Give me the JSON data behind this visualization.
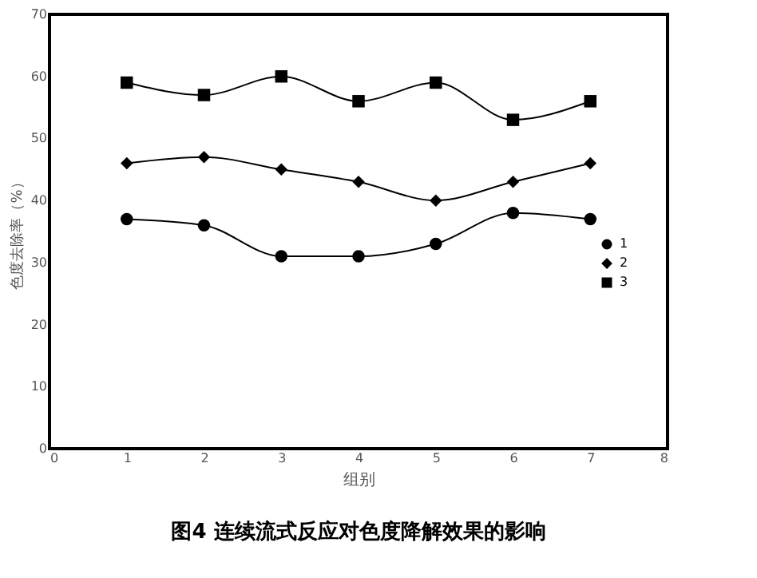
{
  "chart_data": {
    "type": "line",
    "title": "图4  连续流式反应对色度降解效果的影响",
    "xlabel": "组别",
    "ylabel": "色度去除率（%）",
    "x": [
      1,
      2,
      3,
      4,
      5,
      6,
      7
    ],
    "series": [
      {
        "name": "1",
        "color": "#000000",
        "marker": "circle",
        "values": [
          37,
          36,
          31,
          31,
          33,
          38,
          37
        ]
      },
      {
        "name": "2",
        "color": "#000000",
        "marker": "diamond",
        "values": [
          46,
          47,
          45,
          43,
          40,
          43,
          46
        ]
      },
      {
        "name": "3",
        "color": "#000000",
        "marker": "square",
        "values": [
          59,
          57,
          60,
          56,
          59,
          53,
          56
        ]
      }
    ],
    "xlim": [
      0,
      8
    ],
    "xticks": [
      0,
      1,
      2,
      3,
      4,
      5,
      6,
      7,
      8
    ],
    "ylim": [
      0,
      70
    ],
    "yticks": [
      0,
      10,
      20,
      30,
      40,
      50,
      60,
      70
    ],
    "grid": false,
    "legend": "right",
    "line_style": "solid"
  }
}
